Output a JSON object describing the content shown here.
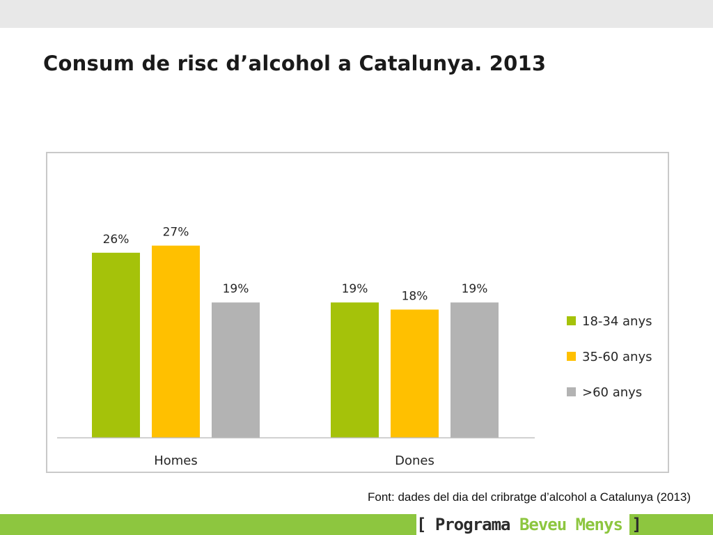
{
  "slide": {
    "title": "Consum de risc d’alcohol a Catalunya. 2013",
    "source": "Font: dades del dia del cribratge d’alcohol a Catalunya (2013)",
    "brand": {
      "open_bracket": "[",
      "word1": "Programa",
      "word2": "Beveu Menys",
      "close_bracket": "]"
    },
    "colors": {
      "accent_green": "#8dc63f",
      "top_bar": "#e8e8e8"
    }
  },
  "chart_data": {
    "type": "bar",
    "categories": [
      "Homes",
      "Dones"
    ],
    "series": [
      {
        "name": "18-34 anys",
        "values": [
          26,
          19
        ],
        "labels": [
          "26%",
          "19%"
        ],
        "color": "#a5c20a"
      },
      {
        "name": "35-60 anys",
        "values": [
          27,
          18
        ],
        "labels": [
          "27%",
          "18%"
        ],
        "color": "#ffc000"
      },
      {
        "name": ">60 anys",
        "values": [
          19,
          19
        ],
        "labels": [
          "19%",
          "19%"
        ],
        "color": "#b3b3b3"
      }
    ],
    "ylim": [
      0,
      35
    ],
    "grid": false,
    "legend": "right"
  }
}
